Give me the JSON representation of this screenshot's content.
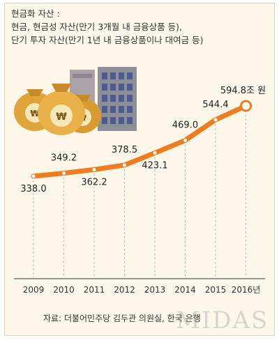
{
  "heading": {
    "line1": "현금화 자산 :",
    "line2": "현금, 현금성 자산(만기 3개월 내 금융상품 등),",
    "line3": "단기 투자 자산(만기 1년 내 금융상품이나 대여금 등)"
  },
  "source": "자료: 더불어민주당 김두관 의원실, 한국 은행",
  "watermark": "MIDAS",
  "colors": {
    "line": "#f07c22",
    "marker": "#f07c22",
    "background": "#fdf7ea",
    "grid": "#bbbbbb"
  },
  "icons": [
    "money-bag-icon",
    "money-bag-icon",
    "money-bag-icon",
    "office-building-icon",
    "office-building-icon"
  ],
  "chart_data": {
    "type": "line",
    "categories": [
      "2009",
      "2010",
      "2011",
      "2012",
      "2013",
      "2014",
      "2015",
      "2016년"
    ],
    "values": [
      338.0,
      349.2,
      362.2,
      378.5,
      423.1,
      469.0,
      544.4,
      594.8
    ],
    "data_labels": [
      "338.0",
      "349.2",
      "362.2",
      "378.5",
      "423.1",
      "469.0",
      "544.4",
      "594.8조 원"
    ],
    "title": "",
    "xlabel": "",
    "ylabel": "",
    "ylim": [
      300,
      620
    ],
    "grid": "vertical-dashed",
    "legend": "none"
  }
}
